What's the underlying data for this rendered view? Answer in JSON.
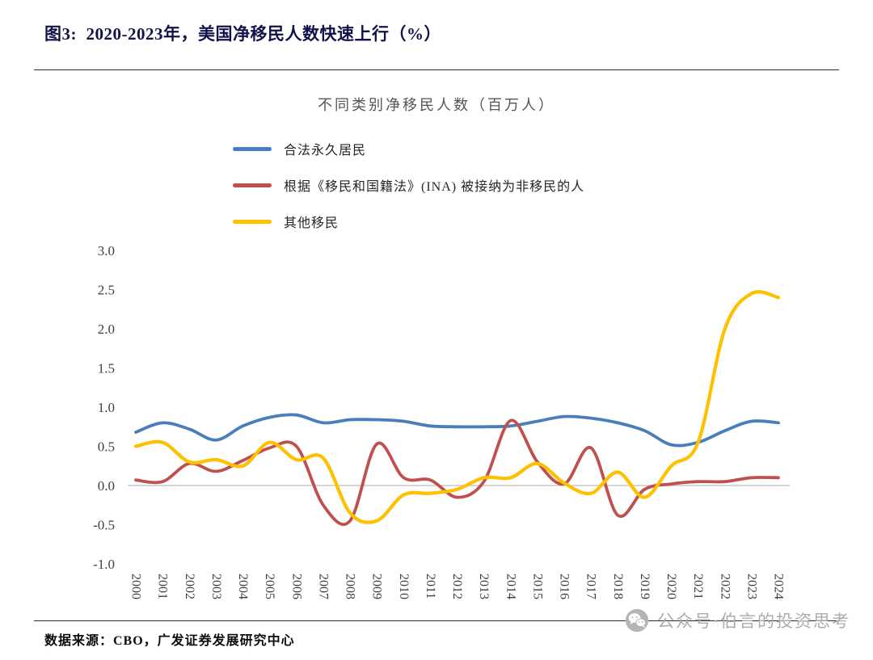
{
  "header": {
    "title": "图3:  2020-2023年，美国净移民人数快速上行（%）"
  },
  "chart_data": {
    "type": "line",
    "title": "不同类别净移民人数（百万人）",
    "xlabel": "",
    "ylabel": "",
    "ylim": [
      -1.0,
      3.0
    ],
    "yticks": [
      3.0,
      2.5,
      2.0,
      1.5,
      1.0,
      0.5,
      0.0,
      -0.5,
      -1.0
    ],
    "grid": false,
    "legend_position": "top-left",
    "zero_line_color": "#c9c9c9",
    "categories": [
      "2000",
      "2001",
      "2002",
      "2003",
      "2004",
      "2005",
      "2006",
      "2007",
      "2008",
      "2009",
      "2010",
      "2011",
      "2012",
      "2013",
      "2014",
      "2015",
      "2016",
      "2017",
      "2018",
      "2019",
      "2020",
      "2021",
      "2022",
      "2023",
      "2024"
    ],
    "series": [
      {
        "name": "合法永久居民",
        "color": "#4a7ebb",
        "values": [
          0.68,
          0.8,
          0.72,
          0.58,
          0.76,
          0.87,
          0.9,
          0.8,
          0.84,
          0.84,
          0.82,
          0.76,
          0.75,
          0.75,
          0.76,
          0.82,
          0.88,
          0.86,
          0.8,
          0.7,
          0.52,
          0.55,
          0.7,
          0.82,
          0.8
        ]
      },
      {
        "name": "根据《移民和国籍法》(INA) 被接纳为非移民的人",
        "color": "#c0504d",
        "values": [
          0.07,
          0.05,
          0.28,
          0.18,
          0.32,
          0.48,
          0.5,
          -0.25,
          -0.45,
          0.53,
          0.1,
          0.07,
          -0.15,
          0.05,
          0.83,
          0.3,
          0.02,
          0.48,
          -0.38,
          -0.05,
          0.02,
          0.05,
          0.05,
          0.1,
          0.1
        ]
      },
      {
        "name": "其他移民",
        "color": "#ffc000",
        "values": [
          0.5,
          0.55,
          0.3,
          0.33,
          0.25,
          0.55,
          0.33,
          0.35,
          -0.35,
          -0.45,
          -0.12,
          -0.1,
          -0.05,
          0.1,
          0.1,
          0.28,
          0.03,
          -0.1,
          0.17,
          -0.15,
          0.25,
          0.55,
          2.0,
          2.45,
          2.4
        ]
      }
    ]
  },
  "footer": {
    "source": "数据来源：CBO，广发证券发展研究中心"
  },
  "watermark": {
    "icon": "wechat-icon",
    "text": "公众号·伯言的投资思考"
  }
}
